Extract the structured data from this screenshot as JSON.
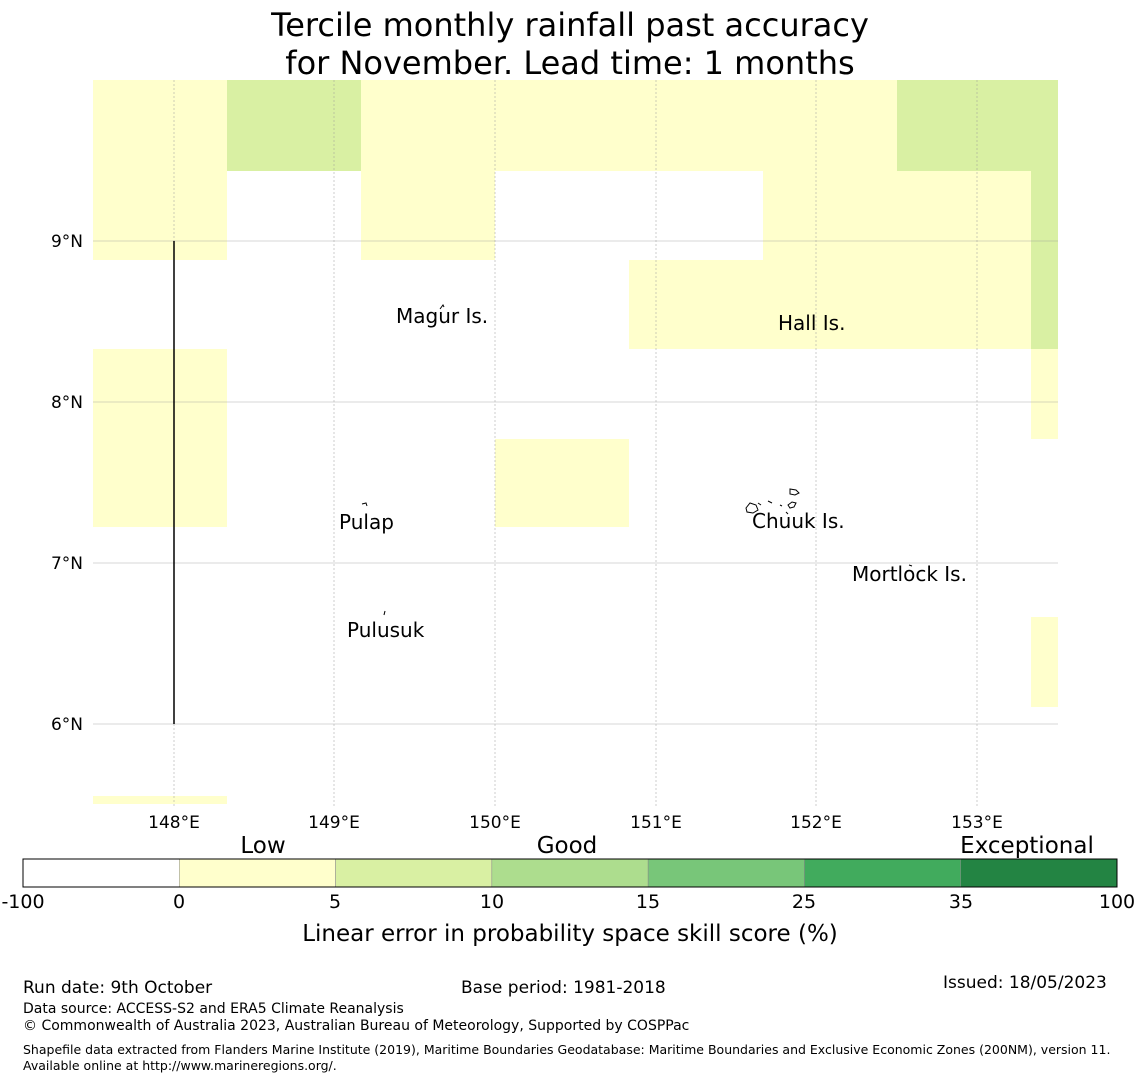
{
  "title": {
    "line1": "Tercile monthly rainfall past accuracy",
    "line2": "for November. Lead time: 1 months"
  },
  "map": {
    "lat_ticks": [
      "9°N",
      "8°N",
      "7°N",
      "6°N"
    ],
    "lon_ticks": [
      "148°E",
      "149°E",
      "150°E",
      "151°E",
      "152°E",
      "153°E"
    ],
    "places": [
      "Magur Is.",
      "Hall Is.",
      "Pulap",
      "Chuuk Is.",
      "Mortlock Is.",
      "Pulusuk"
    ]
  },
  "legend": {
    "categories": [
      "Low",
      "Good",
      "Exceptional"
    ],
    "ticks": [
      "-100",
      "0",
      "5",
      "10",
      "15",
      "25",
      "35",
      "100"
    ],
    "colors": [
      "#ffffff",
      "#ffffcc",
      "#d9f0a3",
      "#addd8e",
      "#78c679",
      "#41ab5d",
      "#238443"
    ],
    "label": "Linear error in probability space skill score (%)"
  },
  "footer": {
    "run_date": "Run date: 9th October",
    "base_period": "Base period: 1981-2018",
    "issued": "Issued: 18/05/2023",
    "source": "Data source: ACCESS-S2 and ERA5 Climate Reanalysis",
    "copyright": "© Commonwealth of Australia 2023, Australian Bureau of Meteorology, Supported by COSPPac",
    "shapefile": "Shapefile data extracted from Flanders Marine Institute (2019), Maritime Boundaries Geodatabase: Maritime Boundaries and Exclusive Economic Zones (200NM), version 11. Available online at http://www.marineregions.org/."
  }
}
